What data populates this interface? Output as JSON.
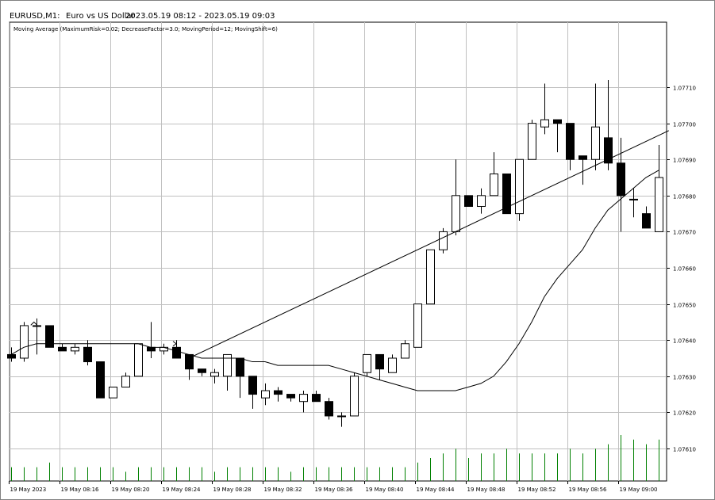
{
  "header": {
    "symbol_label": "EURUSD,M1:",
    "instrument_name": "Euro vs US Dollar",
    "date_range": "2023.05.19 08:12 - 2023.05.19 09:03"
  },
  "indicator_label": "Moving Average (MaximumRisk=0.02; DecreaseFactor=3.0; MovingPeriod=12; MovingShift=6)",
  "colors": {
    "background": "#ffffff",
    "grid": "#c0c0c0",
    "bull_fill": "#ffffff",
    "bear_fill": "#000000",
    "candle_outline": "#000000",
    "volume": "#008000",
    "ma_line": "#000000",
    "trend_line": "#000000"
  },
  "chart_data": {
    "type": "candlestick",
    "symbol": "EURUSD",
    "timeframe": "M1",
    "y_ticks": [
      "1.07610",
      "1.07620",
      "1.07630",
      "1.07640",
      "1.07650",
      "1.07660",
      "1.07670",
      "1.07680",
      "1.07690",
      "1.07700",
      "1.07710"
    ],
    "ylim": [
      1.07601,
      1.07728
    ],
    "x_tick_labels": [
      "19 May 2023",
      "19 May 08:16",
      "19 May 08:20",
      "19 May 08:24",
      "19 May 08:28",
      "19 May 08:32",
      "19 May 08:36",
      "19 May 08:40",
      "19 May 08:44",
      "19 May 08:48",
      "19 May 08:52",
      "19 May 08:56",
      "19 May 09:00"
    ],
    "x_tick_bar_index": [
      0,
      4,
      8,
      12,
      16,
      20,
      24,
      28,
      32,
      36,
      40,
      44,
      48
    ],
    "candles": [
      {
        "o": 1.07636,
        "h": 1.07638,
        "l": 1.07634,
        "c": 1.07635
      },
      {
        "o": 1.07635,
        "h": 1.07645,
        "l": 1.07634,
        "c": 1.07644
      },
      {
        "o": 1.07644,
        "h": 1.07646,
        "l": 1.07636,
        "c": 1.07644
      },
      {
        "o": 1.07644,
        "h": 1.07644,
        "l": 1.07638,
        "c": 1.07638
      },
      {
        "o": 1.07638,
        "h": 1.07639,
        "l": 1.07637,
        "c": 1.07637
      },
      {
        "o": 1.07637,
        "h": 1.07639,
        "l": 1.07636,
        "c": 1.07638
      },
      {
        "o": 1.07638,
        "h": 1.0764,
        "l": 1.07633,
        "c": 1.07634
      },
      {
        "o": 1.07634,
        "h": 1.07634,
        "l": 1.07624,
        "c": 1.07624
      },
      {
        "o": 1.07624,
        "h": 1.07627,
        "l": 1.07624,
        "c": 1.07627
      },
      {
        "o": 1.07627,
        "h": 1.07631,
        "l": 1.07627,
        "c": 1.0763
      },
      {
        "o": 1.0763,
        "h": 1.07639,
        "l": 1.0763,
        "c": 1.07639
      },
      {
        "o": 1.07638,
        "h": 1.07645,
        "l": 1.07635,
        "c": 1.07637
      },
      {
        "o": 1.07637,
        "h": 1.07639,
        "l": 1.07636,
        "c": 1.07638
      },
      {
        "o": 1.07638,
        "h": 1.0764,
        "l": 1.07635,
        "c": 1.07635
      },
      {
        "o": 1.07636,
        "h": 1.07636,
        "l": 1.07629,
        "c": 1.07632
      },
      {
        "o": 1.07632,
        "h": 1.07632,
        "l": 1.0763,
        "c": 1.07631
      },
      {
        "o": 1.0763,
        "h": 1.07632,
        "l": 1.07628,
        "c": 1.07631
      },
      {
        "o": 1.0763,
        "h": 1.07636,
        "l": 1.07626,
        "c": 1.07636
      },
      {
        "o": 1.07635,
        "h": 1.07635,
        "l": 1.07624,
        "c": 1.0763
      },
      {
        "o": 1.0763,
        "h": 1.0763,
        "l": 1.07621,
        "c": 1.07625
      },
      {
        "o": 1.07624,
        "h": 1.07628,
        "l": 1.07622,
        "c": 1.07626
      },
      {
        "o": 1.07626,
        "h": 1.07627,
        "l": 1.07623,
        "c": 1.07625
      },
      {
        "o": 1.07625,
        "h": 1.07625,
        "l": 1.07623,
        "c": 1.07624
      },
      {
        "o": 1.07623,
        "h": 1.07626,
        "l": 1.0762,
        "c": 1.07625
      },
      {
        "o": 1.07625,
        "h": 1.07626,
        "l": 1.07623,
        "c": 1.07623
      },
      {
        "o": 1.07623,
        "h": 1.07624,
        "l": 1.07618,
        "c": 1.07619
      },
      {
        "o": 1.07619,
        "h": 1.0762,
        "l": 1.07616,
        "c": 1.07619
      },
      {
        "o": 1.07619,
        "h": 1.07631,
        "l": 1.07619,
        "c": 1.0763
      },
      {
        "o": 1.07631,
        "h": 1.07636,
        "l": 1.0763,
        "c": 1.07636
      },
      {
        "o": 1.07636,
        "h": 1.07636,
        "l": 1.07629,
        "c": 1.07632
      },
      {
        "o": 1.07631,
        "h": 1.07636,
        "l": 1.07631,
        "c": 1.07635
      },
      {
        "o": 1.07635,
        "h": 1.0764,
        "l": 1.07635,
        "c": 1.07639
      },
      {
        "o": 1.07638,
        "h": 1.0765,
        "l": 1.07638,
        "c": 1.0765
      },
      {
        "o": 1.0765,
        "h": 1.07665,
        "l": 1.0765,
        "c": 1.07665
      },
      {
        "o": 1.07665,
        "h": 1.07671,
        "l": 1.07664,
        "c": 1.0767
      },
      {
        "o": 1.0767,
        "h": 1.0769,
        "l": 1.07669,
        "c": 1.0768
      },
      {
        "o": 1.0768,
        "h": 1.0768,
        "l": 1.07677,
        "c": 1.07677
      },
      {
        "o": 1.07677,
        "h": 1.07682,
        "l": 1.07675,
        "c": 1.0768
      },
      {
        "o": 1.0768,
        "h": 1.07692,
        "l": 1.0768,
        "c": 1.07686
      },
      {
        "o": 1.07686,
        "h": 1.07686,
        "l": 1.07675,
        "c": 1.07675
      },
      {
        "o": 1.07675,
        "h": 1.0769,
        "l": 1.07673,
        "c": 1.0769
      },
      {
        "o": 1.0769,
        "h": 1.07701,
        "l": 1.0769,
        "c": 1.077
      },
      {
        "o": 1.07699,
        "h": 1.07711,
        "l": 1.07697,
        "c": 1.07701
      },
      {
        "o": 1.07701,
        "h": 1.07701,
        "l": 1.07692,
        "c": 1.077
      },
      {
        "o": 1.077,
        "h": 1.077,
        "l": 1.07687,
        "c": 1.0769
      },
      {
        "o": 1.07691,
        "h": 1.07691,
        "l": 1.07683,
        "c": 1.0769
      },
      {
        "o": 1.0769,
        "h": 1.07711,
        "l": 1.07687,
        "c": 1.07699
      },
      {
        "o": 1.07696,
        "h": 1.07712,
        "l": 1.07687,
        "c": 1.07689
      },
      {
        "o": 1.07689,
        "h": 1.07696,
        "l": 1.0767,
        "c": 1.0768
      },
      {
        "o": 1.07679,
        "h": 1.07682,
        "l": 1.07674,
        "c": 1.07679
      },
      {
        "o": 1.07675,
        "h": 1.07677,
        "l": 1.07671,
        "c": 1.07671
      },
      {
        "o": 1.0767,
        "h": 1.07694,
        "l": 1.0767,
        "c": 1.07685
      }
    ],
    "volume_relative": [
      0.3,
      0.3,
      0.3,
      0.4,
      0.3,
      0.3,
      0.3,
      0.3,
      0.3,
      0.2,
      0.3,
      0.3,
      0.3,
      0.3,
      0.3,
      0.3,
      0.2,
      0.3,
      0.3,
      0.3,
      0.3,
      0.3,
      0.2,
      0.3,
      0.3,
      0.3,
      0.3,
      0.3,
      0.3,
      0.3,
      0.3,
      0.3,
      0.4,
      0.5,
      0.6,
      0.7,
      0.5,
      0.6,
      0.6,
      0.7,
      0.6,
      0.6,
      0.6,
      0.6,
      0.7,
      0.6,
      0.7,
      0.8,
      1.0,
      0.9,
      0.8,
      0.9
    ],
    "moving_average": {
      "period": 12,
      "shift": 6,
      "points": [
        {
          "bar": 0,
          "v": 1.07636
        },
        {
          "bar": 1,
          "v": 1.07638
        },
        {
          "bar": 2,
          "v": 1.07639
        },
        {
          "bar": 3,
          "v": 1.07639
        },
        {
          "bar": 4,
          "v": 1.07639
        },
        {
          "bar": 5,
          "v": 1.07639
        },
        {
          "bar": 6,
          "v": 1.07639
        },
        {
          "bar": 7,
          "v": 1.07639
        },
        {
          "bar": 8,
          "v": 1.07639
        },
        {
          "bar": 9,
          "v": 1.07639
        },
        {
          "bar": 10,
          "v": 1.07639
        },
        {
          "bar": 11,
          "v": 1.07638
        },
        {
          "bar": 12,
          "v": 1.07638
        },
        {
          "bar": 13,
          "v": 1.07637
        },
        {
          "bar": 14,
          "v": 1.07636
        },
        {
          "bar": 15,
          "v": 1.07635
        },
        {
          "bar": 16,
          "v": 1.07635
        },
        {
          "bar": 17,
          "v": 1.07635
        },
        {
          "bar": 18,
          "v": 1.07635
        },
        {
          "bar": 19,
          "v": 1.07634
        },
        {
          "bar": 20,
          "v": 1.07634
        },
        {
          "bar": 21,
          "v": 1.07633
        },
        {
          "bar": 22,
          "v": 1.07633
        },
        {
          "bar": 23,
          "v": 1.07633
        },
        {
          "bar": 24,
          "v": 1.07633
        },
        {
          "bar": 25,
          "v": 1.07633
        },
        {
          "bar": 26,
          "v": 1.07632
        },
        {
          "bar": 27,
          "v": 1.07631
        },
        {
          "bar": 28,
          "v": 1.0763
        },
        {
          "bar": 29,
          "v": 1.07629
        },
        {
          "bar": 30,
          "v": 1.07628
        },
        {
          "bar": 31,
          "v": 1.07627
        },
        {
          "bar": 32,
          "v": 1.07626
        },
        {
          "bar": 33,
          "v": 1.07626
        },
        {
          "bar": 34,
          "v": 1.07626
        },
        {
          "bar": 35,
          "v": 1.07626
        },
        {
          "bar": 36,
          "v": 1.07627
        },
        {
          "bar": 37,
          "v": 1.07628
        },
        {
          "bar": 38,
          "v": 1.0763
        },
        {
          "bar": 39,
          "v": 1.07634
        },
        {
          "bar": 40,
          "v": 1.07639
        },
        {
          "bar": 41,
          "v": 1.07645
        },
        {
          "bar": 42,
          "v": 1.07652
        },
        {
          "bar": 43,
          "v": 1.07657
        },
        {
          "bar": 44,
          "v": 1.07661
        },
        {
          "bar": 45,
          "v": 1.07665
        },
        {
          "bar": 46,
          "v": 1.07671
        },
        {
          "bar": 47,
          "v": 1.07676
        },
        {
          "bar": 48,
          "v": 1.07679
        },
        {
          "bar": 49,
          "v": 1.07682
        },
        {
          "bar": 50,
          "v": 1.07685
        },
        {
          "bar": 51,
          "v": 1.07687
        }
      ]
    },
    "trend_line": {
      "from": {
        "bar": 14,
        "v": 1.07635
      },
      "to": {
        "bar": 51.8,
        "v": 1.07698
      }
    },
    "tester_arrows": [
      {
        "bar": 1.8,
        "v": 1.07645,
        "kind": "buy"
      },
      {
        "bar": 13,
        "v": 1.07639,
        "kind": "sell"
      }
    ]
  }
}
